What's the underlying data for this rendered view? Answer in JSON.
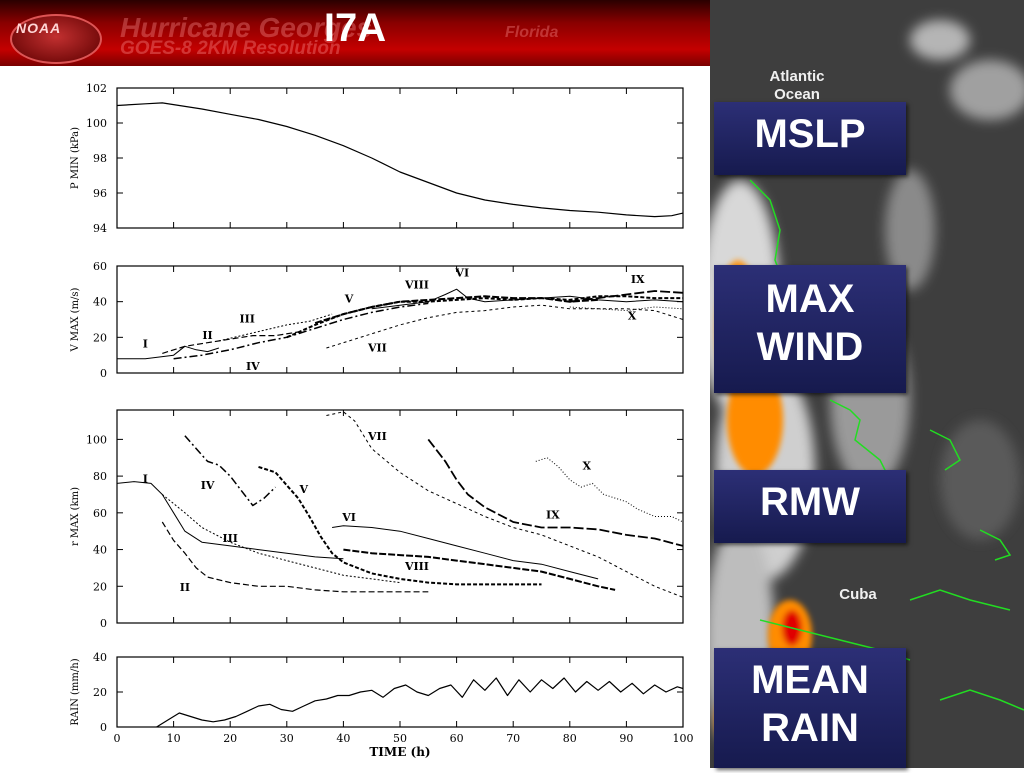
{
  "slide": {
    "title": "I7A",
    "banner": {
      "logo_text": "NOAA",
      "line1": "Hurricane Georges",
      "line2": "GOES-8   2KM Resolution",
      "region": "Florida"
    }
  },
  "satellite": {
    "labels": [
      "Atlantic Ocean",
      "Cuba"
    ],
    "colors": {
      "land_outline": "#22dd22",
      "background": "#404040",
      "cloud": "#e8e8e8",
      "convection": "#ff8c00",
      "core": "#e00000"
    }
  },
  "variable_boxes": [
    {
      "lines": [
        "MSLP"
      ]
    },
    {
      "lines": [
        "MAX",
        "WIND"
      ]
    },
    {
      "lines": [
        "RMW"
      ]
    },
    {
      "lines": [
        "MEAN",
        "RAIN"
      ]
    }
  ],
  "chart_data": [
    {
      "type": "line",
      "panel": "mslp",
      "ylabel": "P MIN (kPa)",
      "xlim": [
        0,
        100
      ],
      "ylim": [
        94,
        102
      ],
      "yticks": [
        94,
        96,
        98,
        100,
        102
      ],
      "series": [
        {
          "x": [
            0,
            5,
            8,
            10,
            15,
            20,
            25,
            30,
            35,
            40,
            45,
            50,
            55,
            60,
            65,
            70,
            75,
            80,
            85,
            90,
            95,
            98,
            100
          ],
          "y": [
            101.0,
            101.1,
            101.15,
            101.05,
            100.8,
            100.5,
            100.2,
            99.8,
            99.3,
            98.7,
            98.0,
            97.2,
            96.6,
            96.0,
            95.6,
            95.35,
            95.15,
            95.0,
            94.9,
            94.75,
            94.65,
            94.7,
            94.85
          ]
        }
      ]
    },
    {
      "type": "line",
      "panel": "max_wind",
      "ylabel": "V MAX (m/s)",
      "xlim": [
        0,
        100
      ],
      "ylim": [
        0,
        60
      ],
      "yticks": [
        0,
        20,
        40,
        60
      ],
      "series": [
        {
          "name": "I",
          "x": [
            0,
            5,
            10,
            12,
            14,
            16,
            18
          ],
          "y": [
            8,
            8,
            10,
            15,
            13,
            12,
            14
          ]
        },
        {
          "name": "II",
          "x": [
            8,
            12,
            16,
            20,
            24,
            28,
            32
          ],
          "y": [
            11,
            15,
            17,
            19,
            21,
            21,
            23
          ]
        },
        {
          "name": "III",
          "x": [
            18,
            22,
            26,
            30,
            34,
            36,
            38
          ],
          "y": [
            18,
            21,
            24,
            27,
            29,
            31,
            33
          ]
        },
        {
          "name": "IV",
          "x": [
            10,
            15,
            20,
            25,
            30,
            35,
            40,
            45,
            50,
            55
          ],
          "y": [
            8,
            10,
            13,
            17,
            20,
            25,
            30,
            34,
            37,
            39
          ]
        },
        {
          "name": "V",
          "x": [
            30,
            35,
            40,
            45,
            50,
            55,
            60,
            65,
            70,
            75,
            80,
            85,
            90,
            95,
            100
          ],
          "y": [
            20,
            27,
            33,
            37,
            40,
            40,
            41,
            42,
            41,
            42,
            41,
            43,
            43,
            42,
            42
          ]
        },
        {
          "name": "VI",
          "x": [
            45,
            50,
            55,
            58,
            60,
            62,
            65,
            70,
            75,
            80,
            85,
            90,
            95,
            100
          ],
          "y": [
            36,
            38,
            40,
            44,
            47,
            42,
            40,
            41,
            42,
            43,
            41,
            40,
            41,
            40
          ]
        },
        {
          "name": "VII",
          "x": [
            37,
            40,
            45,
            50,
            55,
            60,
            65,
            70,
            75,
            80,
            85,
            90,
            95,
            100
          ],
          "y": [
            14,
            17,
            22,
            27,
            31,
            34,
            35,
            37,
            38,
            36,
            36,
            36,
            35,
            30
          ]
        },
        {
          "name": "VIII",
          "x": [
            35,
            40,
            45,
            50,
            55,
            60,
            65,
            70,
            75,
            80,
            85
          ],
          "y": [
            28,
            33,
            37,
            40,
            41,
            42,
            43,
            42,
            42,
            40,
            41
          ]
        },
        {
          "name": "IX",
          "x": [
            80,
            85,
            90,
            95,
            100
          ],
          "y": [
            40,
            42,
            44,
            46,
            45
          ]
        },
        {
          "name": "X",
          "x": [
            80,
            85,
            90,
            95,
            100
          ],
          "y": [
            37,
            36,
            35,
            37,
            36
          ]
        }
      ]
    },
    {
      "type": "line",
      "panel": "rmw",
      "ylabel": "r MAX (km)",
      "xlim": [
        0,
        100
      ],
      "ylim": [
        0,
        116
      ],
      "yticks": [
        0,
        20,
        40,
        60,
        80,
        100
      ],
      "series": [
        {
          "name": "I",
          "x": [
            0,
            3,
            6,
            8,
            10,
            12,
            15,
            20,
            25,
            30,
            35,
            40
          ],
          "y": [
            76,
            77,
            76,
            70,
            60,
            50,
            44,
            42,
            40,
            38,
            36,
            35
          ]
        },
        {
          "name": "II",
          "x": [
            8,
            10,
            12,
            14,
            16,
            20,
            25,
            30,
            35,
            40,
            45,
            50,
            55
          ],
          "y": [
            55,
            45,
            38,
            30,
            25,
            22,
            20,
            20,
            18,
            17,
            17,
            17,
            17
          ]
        },
        {
          "name": "III",
          "x": [
            8,
            10,
            12,
            15,
            20,
            25,
            30,
            35,
            40,
            45,
            50
          ],
          "y": [
            70,
            65,
            60,
            52,
            44,
            38,
            34,
            30,
            26,
            24,
            22
          ]
        },
        {
          "name": "IV",
          "x": [
            12,
            14,
            16,
            18,
            20,
            22,
            24,
            26,
            28
          ],
          "y": [
            102,
            95,
            88,
            86,
            80,
            72,
            64,
            68,
            74
          ]
        },
        {
          "name": "V",
          "x": [
            25,
            28,
            30,
            32,
            34,
            36,
            38,
            40,
            45,
            50,
            55,
            60,
            65,
            70,
            75
          ],
          "y": [
            85,
            82,
            75,
            68,
            58,
            47,
            38,
            33,
            27,
            24,
            22,
            21,
            21,
            21,
            21
          ]
        },
        {
          "name": "VI",
          "x": [
            38,
            40,
            45,
            50,
            55,
            60,
            65,
            70,
            75,
            80,
            85
          ],
          "y": [
            52,
            53,
            52,
            50,
            46,
            42,
            38,
            34,
            32,
            28,
            24
          ]
        },
        {
          "name": "VII",
          "x": [
            37,
            40,
            42,
            45,
            50,
            55,
            60,
            65,
            70,
            75,
            80,
            85,
            90,
            95,
            100
          ],
          "y": [
            113,
            115,
            110,
            95,
            82,
            72,
            65,
            58,
            52,
            48,
            42,
            36,
            28,
            20,
            14
          ]
        },
        {
          "name": "VIII",
          "x": [
            40,
            45,
            50,
            55,
            60,
            65,
            70,
            75,
            80,
            85,
            88
          ],
          "y": [
            40,
            38,
            37,
            36,
            34,
            32,
            30,
            28,
            24,
            20,
            18
          ]
        },
        {
          "name": "IX",
          "x": [
            55,
            58,
            60,
            62,
            65,
            70,
            75,
            80,
            85,
            90,
            95,
            100
          ],
          "y": [
            100,
            88,
            78,
            70,
            63,
            55,
            52,
            52,
            51,
            48,
            46,
            42
          ]
        },
        {
          "name": "X",
          "x": [
            74,
            76,
            78,
            80,
            82,
            84,
            86,
            88,
            90,
            92,
            95,
            98,
            100
          ],
          "y": [
            88,
            90,
            85,
            78,
            74,
            76,
            70,
            68,
            66,
            62,
            58,
            58,
            55
          ]
        }
      ],
      "annotations": [
        "I",
        "II",
        "III",
        "IV",
        "V",
        "VI",
        "VII",
        "VIII",
        "IX",
        "X"
      ]
    },
    {
      "type": "line",
      "panel": "mean_rain",
      "ylabel": "RAIN (mm/h)",
      "xlabel": "TIME (h)",
      "xlim": [
        0,
        100
      ],
      "ylim": [
        0,
        40
      ],
      "yticks": [
        0,
        20,
        40
      ],
      "xticks": [
        0,
        10,
        20,
        30,
        40,
        50,
        60,
        70,
        80,
        90,
        100
      ],
      "series": [
        {
          "x": [
            7,
            9,
            11,
            13,
            15,
            17,
            19,
            21,
            23,
            25,
            27,
            29,
            31,
            33,
            35,
            37,
            39,
            41,
            43,
            45,
            47,
            49,
            51,
            53,
            55,
            57,
            59,
            61,
            63,
            65,
            67,
            69,
            71,
            73,
            75,
            77,
            79,
            81,
            83,
            85,
            87,
            89,
            91,
            93,
            95,
            97,
            99,
            100
          ],
          "y": [
            0,
            4,
            8,
            6,
            4,
            3,
            4,
            6,
            9,
            12,
            13,
            10,
            9,
            12,
            15,
            16,
            18,
            18,
            20,
            21,
            17,
            22,
            24,
            20,
            18,
            22,
            24,
            17,
            27,
            21,
            28,
            18,
            27,
            20,
            27,
            22,
            28,
            20,
            26,
            21,
            26,
            20,
            25,
            19,
            24,
            20,
            23,
            22
          ]
        }
      ]
    }
  ]
}
